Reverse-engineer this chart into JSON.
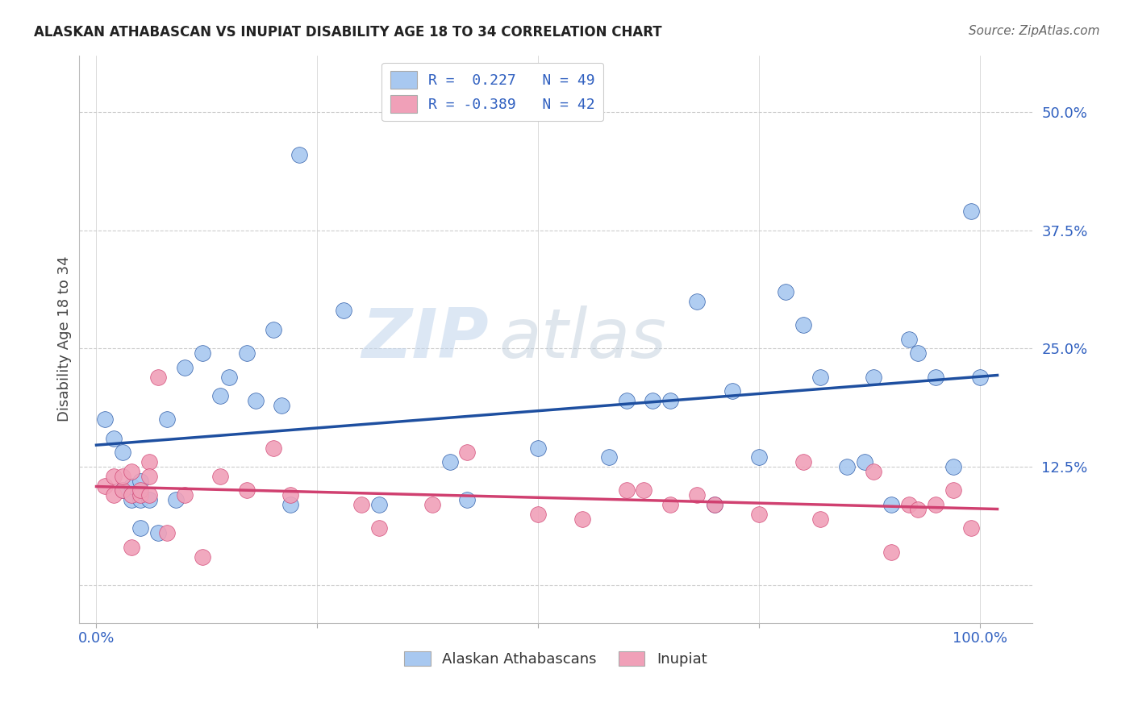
{
  "title": "ALASKAN ATHABASCAN VS INUPIAT DISABILITY AGE 18 TO 34 CORRELATION CHART",
  "source": "Source: ZipAtlas.com",
  "ylabel": "Disability Age 18 to 34",
  "yticks": [
    0.0,
    0.125,
    0.25,
    0.375,
    0.5
  ],
  "ytick_labels": [
    "",
    "12.5%",
    "25.0%",
    "37.5%",
    "50.0%"
  ],
  "xlim": [
    -0.02,
    1.06
  ],
  "ylim": [
    -0.04,
    0.56
  ],
  "blue_color": "#A8C8F0",
  "pink_color": "#F0A0B8",
  "blue_line_color": "#1E4FA0",
  "pink_line_color": "#D04070",
  "tick_label_color": "#3060C0",
  "legend_blue_label": "R =  0.227   N = 49",
  "legend_pink_label": "R = -0.389   N = 42",
  "legend_bottom_blue": "Alaskan Athabascans",
  "legend_bottom_pink": "Inupiat",
  "blue_x": [
    0.01,
    0.02,
    0.03,
    0.03,
    0.04,
    0.04,
    0.05,
    0.05,
    0.05,
    0.06,
    0.07,
    0.08,
    0.09,
    0.1,
    0.12,
    0.14,
    0.15,
    0.17,
    0.18,
    0.2,
    0.21,
    0.22,
    0.23,
    0.28,
    0.32,
    0.4,
    0.42,
    0.5,
    0.58,
    0.6,
    0.63,
    0.65,
    0.68,
    0.7,
    0.72,
    0.75,
    0.78,
    0.8,
    0.82,
    0.85,
    0.87,
    0.88,
    0.9,
    0.92,
    0.93,
    0.95,
    0.97,
    0.99,
    1.0
  ],
  "blue_y": [
    0.175,
    0.155,
    0.14,
    0.1,
    0.09,
    0.105,
    0.11,
    0.09,
    0.06,
    0.09,
    0.055,
    0.175,
    0.09,
    0.23,
    0.245,
    0.2,
    0.22,
    0.245,
    0.195,
    0.27,
    0.19,
    0.085,
    0.455,
    0.29,
    0.085,
    0.13,
    0.09,
    0.145,
    0.135,
    0.195,
    0.195,
    0.195,
    0.3,
    0.085,
    0.205,
    0.135,
    0.31,
    0.275,
    0.22,
    0.125,
    0.13,
    0.22,
    0.085,
    0.26,
    0.245,
    0.22,
    0.125,
    0.395,
    0.22
  ],
  "pink_x": [
    0.01,
    0.02,
    0.02,
    0.03,
    0.03,
    0.04,
    0.04,
    0.04,
    0.05,
    0.05,
    0.06,
    0.06,
    0.06,
    0.07,
    0.08,
    0.1,
    0.12,
    0.14,
    0.17,
    0.2,
    0.22,
    0.3,
    0.32,
    0.38,
    0.42,
    0.5,
    0.55,
    0.6,
    0.62,
    0.65,
    0.68,
    0.7,
    0.75,
    0.8,
    0.82,
    0.88,
    0.9,
    0.92,
    0.93,
    0.95,
    0.97,
    0.99
  ],
  "pink_y": [
    0.105,
    0.095,
    0.115,
    0.1,
    0.115,
    0.095,
    0.04,
    0.12,
    0.095,
    0.1,
    0.13,
    0.115,
    0.095,
    0.22,
    0.055,
    0.095,
    0.03,
    0.115,
    0.1,
    0.145,
    0.095,
    0.085,
    0.06,
    0.085,
    0.14,
    0.075,
    0.07,
    0.1,
    0.1,
    0.085,
    0.095,
    0.085,
    0.075,
    0.13,
    0.07,
    0.12,
    0.035,
    0.085,
    0.08,
    0.085,
    0.1,
    0.06
  ],
  "watermark_zip": "ZIP",
  "watermark_atlas": "atlas",
  "background_color": "#FFFFFF",
  "grid_color": "#CCCCCC",
  "grid_style": "--"
}
